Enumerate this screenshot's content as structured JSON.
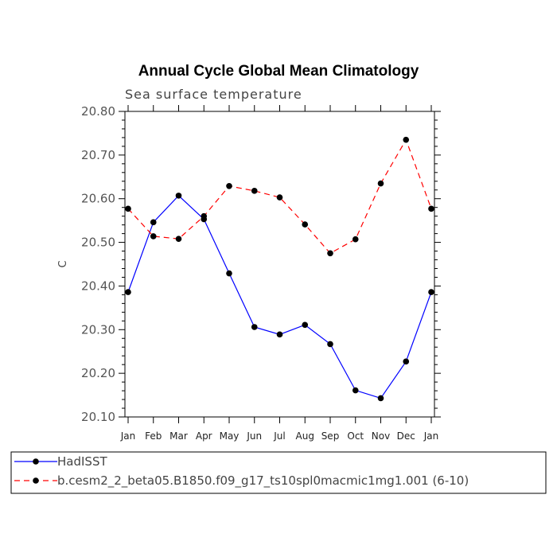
{
  "chart_data": {
    "type": "line",
    "title": "Annual Cycle Global Mean Climatology",
    "subtitle": "Sea surface temperature",
    "xlabel": "",
    "ylabel": "C",
    "categories": [
      "Jan",
      "Feb",
      "Mar",
      "Apr",
      "May",
      "Jun",
      "Jul",
      "Aug",
      "Sep",
      "Oct",
      "Nov",
      "Dec",
      "Jan"
    ],
    "ylim": [
      20.1,
      20.8
    ],
    "yticks": [
      "20.10",
      "20.20",
      "20.30",
      "20.40",
      "20.50",
      "20.60",
      "20.70",
      "20.80"
    ],
    "yticks_values": [
      20.1,
      20.2,
      20.3,
      20.4,
      20.5,
      20.6,
      20.7,
      20.8
    ],
    "grid": false,
    "legend_position": "bottom",
    "series": [
      {
        "name": "HadISST",
        "color": "#0000ff",
        "dash": "solid",
        "marker": "filled-circle",
        "values": [
          20.386,
          20.546,
          20.607,
          20.553,
          20.429,
          20.306,
          20.289,
          20.311,
          20.267,
          20.161,
          20.143,
          20.227,
          20.386
        ]
      },
      {
        "name": "b.cesm2_2_beta05.B1850.f09_g17_ts10spl0macmic1mg1.001 (6-10)",
        "color": "#ff0000",
        "dash": "dashed",
        "marker": "filled-circle",
        "values": [
          20.577,
          20.514,
          20.508,
          20.56,
          20.629,
          20.618,
          20.603,
          20.541,
          20.475,
          20.507,
          20.635,
          20.735,
          20.577
        ]
      }
    ]
  }
}
